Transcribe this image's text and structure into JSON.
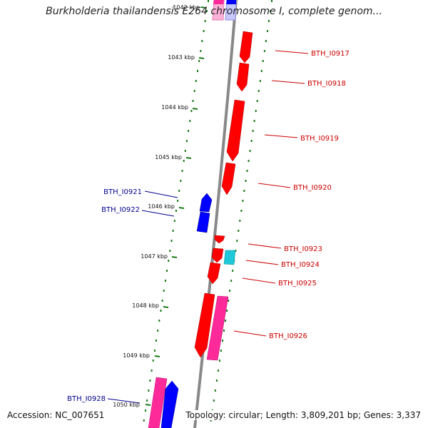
{
  "title": "Burkholderia thailandensis E264 chromosome I, complete genom...",
  "footer": {
    "accession": "Accession: NC_007651",
    "summary": "Topology: circular; Length: 3,809,201 bp; Genes: 3,337"
  },
  "colors": {
    "backbone": "#888888",
    "tick_dots": "#1a7a1a",
    "forward_gene": "#ff0000",
    "reverse_gene": "#0000ff",
    "pink_gene": "#ff2a9a",
    "cyan_gene": "#1ec8d8",
    "forward_label": "#cc0000",
    "reverse_label": "#00008b"
  },
  "ticks": [
    {
      "label": "1042 kbp"
    },
    {
      "label": "1043 kbp"
    },
    {
      "label": "1044 kbp"
    },
    {
      "label": "1045 kbp"
    },
    {
      "label": "1046 kbp"
    },
    {
      "label": "1047 kbp"
    },
    {
      "label": "1048 kbp"
    },
    {
      "label": "1049 kbp"
    },
    {
      "label": "1050 kbp"
    }
  ],
  "gene_labels": [
    {
      "label": "BTH_I0917",
      "strand": "forward"
    },
    {
      "label": "BTH_I0918",
      "strand": "forward"
    },
    {
      "label": "BTH_I0919",
      "strand": "forward"
    },
    {
      "label": "BTH_I0920",
      "strand": "forward"
    },
    {
      "label": "BTH_I0921",
      "strand": "reverse"
    },
    {
      "label": "BTH_I0922",
      "strand": "reverse"
    },
    {
      "label": "BTH_I0923",
      "strand": "forward"
    },
    {
      "label": "BTH_I0924",
      "strand": "forward"
    },
    {
      "label": "BTH_I0925",
      "strand": "forward"
    },
    {
      "label": "BTH_I0926",
      "strand": "forward"
    },
    {
      "label": "BTH_I0928",
      "strand": "reverse"
    }
  ]
}
